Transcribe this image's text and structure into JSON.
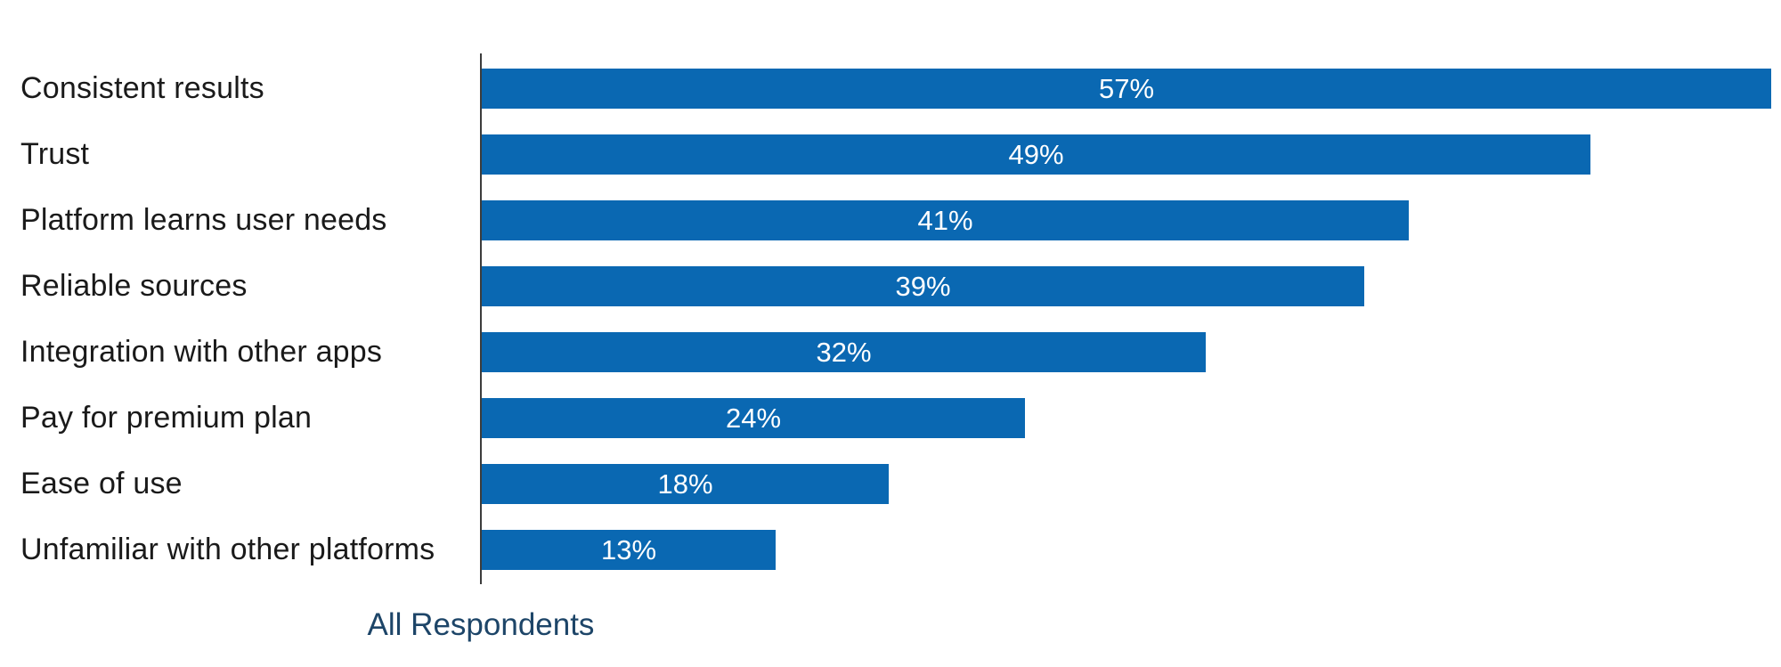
{
  "chart_data": {
    "type": "bar",
    "orientation": "horizontal",
    "title": "",
    "xlabel": "All Respondents",
    "ylabel": "",
    "categories": [
      "Consistent results",
      "Trust",
      "Platform learns user needs",
      "Reliable sources",
      "Integration with other apps",
      "Pay for premium plan",
      "Ease of use",
      "Unfamiliar with other platforms"
    ],
    "values": [
      57,
      49,
      41,
      39,
      32,
      24,
      18,
      13
    ],
    "value_labels": [
      "57%",
      "49%",
      "41%",
      "39%",
      "32%",
      "24%",
      "18%",
      "13%"
    ],
    "xlim": [
      0,
      57.5
    ],
    "grid": false,
    "legend_position": "none",
    "bar_color": "#0a68b2",
    "value_label_color": "#ffffff",
    "category_label_color": "#1a1a1a",
    "axis_label_color": "#1d4568",
    "axis_line_color": "#3c3c3c"
  }
}
